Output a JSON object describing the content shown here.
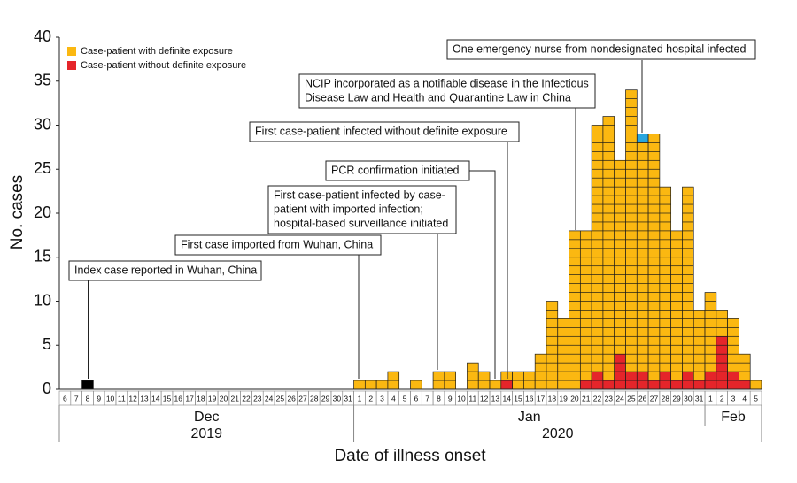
{
  "chart_data": {
    "type": "stacked_bar",
    "y_label": "No. cases",
    "x_label": "Date of illness onset",
    "categories": [
      "6",
      "7",
      "8",
      "9",
      "10",
      "11",
      "12",
      "13",
      "14",
      "15",
      "16",
      "17",
      "18",
      "19",
      "20",
      "21",
      "22",
      "23",
      "24",
      "25",
      "26",
      "27",
      "28",
      "29",
      "30",
      "31",
      "1",
      "2",
      "3",
      "4",
      "5",
      "6",
      "7",
      "8",
      "9",
      "10",
      "11",
      "12",
      "13",
      "14",
      "15",
      "16",
      "17",
      "18",
      "19",
      "20",
      "21",
      "22",
      "23",
      "24",
      "25",
      "26",
      "27",
      "28",
      "29",
      "30",
      "31",
      "1",
      "2",
      "3",
      "4",
      "5"
    ],
    "months": [
      "Dec",
      "Jan",
      "Feb"
    ],
    "years": [
      "2019",
      "2020"
    ],
    "ylim": [
      0,
      40
    ],
    "yticks": [
      0,
      5,
      10,
      15,
      20,
      25,
      30,
      35,
      40
    ],
    "series": [
      {
        "name": "Case-patient without definite exposure",
        "color": "#e5252a",
        "values": [
          0,
          0,
          0,
          0,
          0,
          0,
          0,
          0,
          0,
          0,
          0,
          0,
          0,
          0,
          0,
          0,
          0,
          0,
          0,
          0,
          0,
          0,
          0,
          0,
          0,
          0,
          0,
          0,
          0,
          0,
          0,
          0,
          0,
          0,
          0,
          0,
          0,
          0,
          0,
          1,
          0,
          0,
          0,
          0,
          0,
          0,
          1,
          2,
          1,
          4,
          2,
          2,
          1,
          2,
          1,
          2,
          1,
          2,
          6,
          2,
          1,
          0
        ]
      },
      {
        "name": "Case-patient with definite exposure",
        "color": "#fbb811",
        "values": [
          0,
          0,
          0,
          0,
          0,
          0,
          0,
          0,
          0,
          0,
          0,
          0,
          0,
          0,
          0,
          0,
          0,
          0,
          0,
          0,
          0,
          0,
          0,
          0,
          0,
          0,
          1,
          1,
          1,
          2,
          0,
          1,
          0,
          2,
          2,
          0,
          3,
          2,
          1,
          1,
          2,
          2,
          4,
          10,
          8,
          18,
          17,
          28,
          30,
          22,
          32,
          26,
          28,
          21,
          17,
          21,
          8,
          9,
          3,
          6,
          3,
          1
        ]
      },
      {
        "color": "#000000",
        "values": [
          0,
          0,
          1,
          0,
          0,
          0,
          0,
          0,
          0,
          0,
          0,
          0,
          0,
          0,
          0,
          0,
          0,
          0,
          0,
          0,
          0,
          0,
          0,
          0,
          0,
          0,
          0,
          0,
          0,
          0,
          0,
          0,
          0,
          0,
          0,
          0,
          0,
          0,
          0,
          0,
          0,
          0,
          0,
          0,
          0,
          0,
          0,
          0,
          0,
          0,
          0,
          0,
          0,
          0,
          0,
          0,
          0,
          0,
          0,
          0,
          0,
          0
        ]
      },
      {
        "color": "#2aa6de",
        "values": [
          0,
          0,
          0,
          0,
          0,
          0,
          0,
          0,
          0,
          0,
          0,
          0,
          0,
          0,
          0,
          0,
          0,
          0,
          0,
          0,
          0,
          0,
          0,
          0,
          0,
          0,
          0,
          0,
          0,
          0,
          0,
          0,
          0,
          0,
          0,
          0,
          0,
          0,
          0,
          0,
          0,
          0,
          0,
          0,
          0,
          0,
          0,
          0,
          0,
          0,
          0,
          1,
          0,
          0,
          0,
          0,
          0,
          0,
          0,
          0,
          0,
          0
        ]
      }
    ],
    "annotations": [
      [
        "Index case reported in Wuhan, China"
      ],
      [
        "First case imported from Wuhan, China"
      ],
      [
        "First case-patient infected by case-",
        "patient with imported infection;",
        "hospital-based surveillance initiated"
      ],
      [
        "PCR confirmation initiated"
      ],
      [
        "First case-patient infected without definite exposure"
      ],
      [
        "NCIP incorporated as a notifiable disease in the Infectious",
        "Disease Law and Health and Quarantine Law in China"
      ],
      [
        "One emergency nurse from nondesignated hospital infected"
      ]
    ]
  }
}
